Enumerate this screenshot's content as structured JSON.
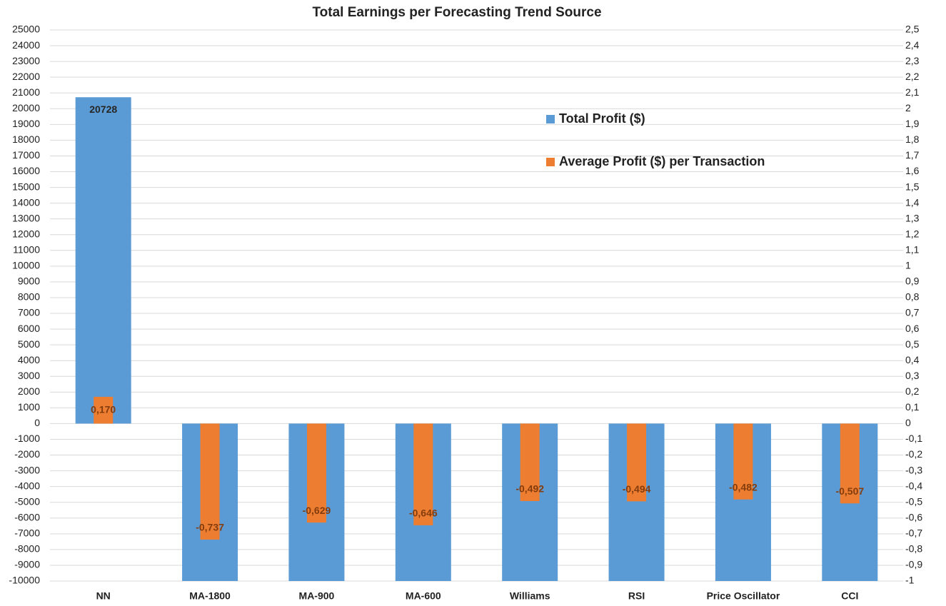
{
  "chart_data": {
    "type": "bar",
    "title": "Total Earnings per Forecasting Trend Source",
    "categories": [
      "NN",
      "MA-1800",
      "MA-900",
      "MA-600",
      "Williams",
      "RSI",
      "Price Oscillator",
      "CCI"
    ],
    "series": [
      {
        "name": "Total Profit ($)",
        "color": "#5b9bd5",
        "axis": "y",
        "values": [
          20728,
          -10000,
          -10000,
          -10000,
          -10000,
          -10000,
          -10000,
          -10000
        ],
        "value_labels": [
          "20728",
          null,
          null,
          null,
          null,
          null,
          null,
          null
        ]
      },
      {
        "name": "Average Profit ($) per Transaction",
        "color": "#ed7d31",
        "axis": "y2",
        "values": [
          0.17,
          -0.737,
          -0.629,
          -0.646,
          -0.492,
          -0.494,
          -0.482,
          -0.507
        ],
        "value_labels": [
          "0,170",
          "-0,737",
          "-0,629",
          "-0,646",
          "-0,492",
          "-0,494",
          "-0,482",
          "-0,507"
        ]
      }
    ],
    "ylim": [
      -10000,
      25000
    ],
    "yticks": [
      -10000,
      -9000,
      -8000,
      -7000,
      -6000,
      -5000,
      -4000,
      -3000,
      -2000,
      -1000,
      0,
      1000,
      2000,
      3000,
      4000,
      5000,
      6000,
      7000,
      8000,
      9000,
      10000,
      11000,
      12000,
      13000,
      14000,
      15000,
      16000,
      17000,
      18000,
      19000,
      20000,
      21000,
      22000,
      23000,
      24000,
      25000
    ],
    "y2lim": [
      -1,
      2.5
    ],
    "y2ticks": [
      -1,
      {
        "value": -0.9,
        "label": "-0,9"
      },
      {
        "value": -0.8,
        "label": "-0,8"
      },
      {
        "value": -0.7,
        "label": "-0,7"
      },
      {
        "value": -0.6,
        "label": "-0,6"
      },
      {
        "value": -0.5,
        "label": "-0,5"
      },
      {
        "value": -0.4,
        "label": "-0,4"
      },
      {
        "value": -0.3,
        "label": "-0,3"
      },
      {
        "value": -0.2,
        "label": "-0,2"
      },
      {
        "value": -0.1,
        "label": "-0,1"
      },
      0,
      {
        "value": 0.1,
        "label": "0,1"
      },
      {
        "value": 0.2,
        "label": "0,2"
      },
      {
        "value": 0.3,
        "label": "0,3"
      },
      {
        "value": 0.4,
        "label": "0,4"
      },
      {
        "value": 0.5,
        "label": "0,5"
      },
      {
        "value": 0.6,
        "label": "0,6"
      },
      {
        "value": 0.7,
        "label": "0,7"
      },
      {
        "value": 0.8,
        "label": "0,8"
      },
      {
        "value": 0.9,
        "label": "0,9"
      },
      1,
      {
        "value": 1.1,
        "label": "1,1"
      },
      {
        "value": 1.2,
        "label": "1,2"
      },
      {
        "value": 1.3,
        "label": "1,3"
      },
      {
        "value": 1.4,
        "label": "1,4"
      },
      {
        "value": 1.5,
        "label": "1,5"
      },
      {
        "value": 1.6,
        "label": "1,6"
      },
      {
        "value": 1.7,
        "label": "1,7"
      },
      {
        "value": 1.8,
        "label": "1,8"
      },
      {
        "value": 1.9,
        "label": "1,9"
      },
      2,
      {
        "value": 2.1,
        "label": "2,1"
      },
      {
        "value": 2.2,
        "label": "2,2"
      },
      {
        "value": 2.3,
        "label": "2,3"
      },
      {
        "value": 2.4,
        "label": "2,4"
      },
      {
        "value": 2.5,
        "label": "2,5"
      }
    ],
    "grid": true,
    "legend": "right"
  }
}
